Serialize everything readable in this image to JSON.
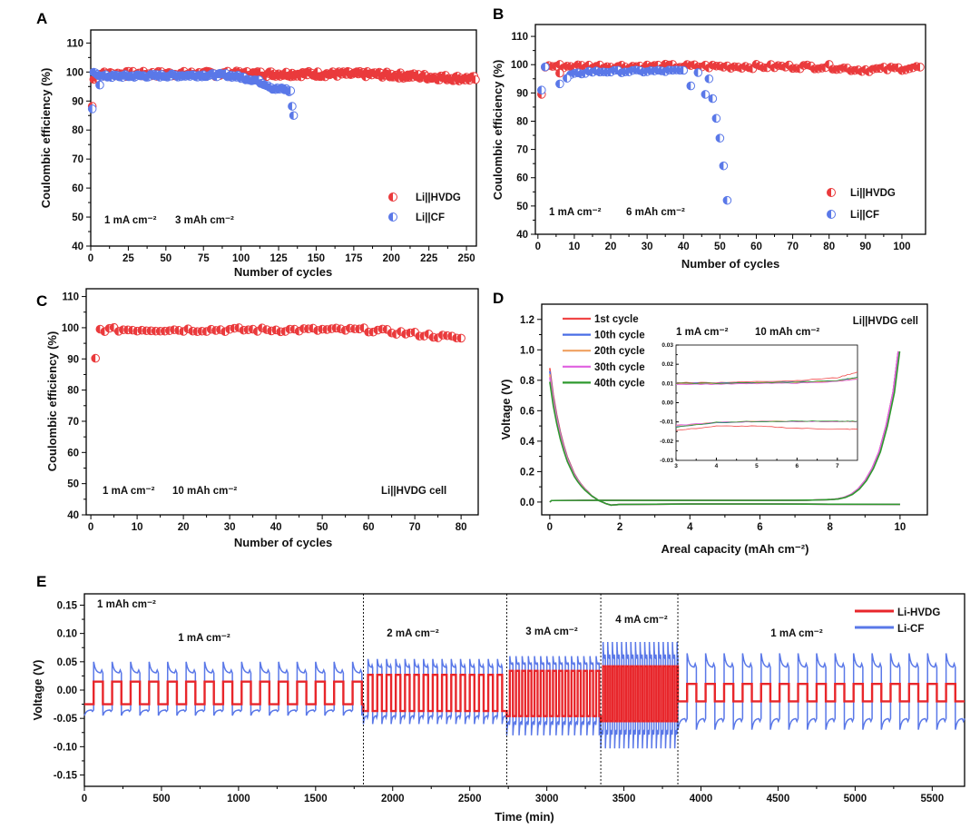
{
  "panel_labels": [
    "A",
    "B",
    "C",
    "D",
    "E"
  ],
  "chart_data": [
    {
      "panel": "A",
      "type": "scatter",
      "xlabel": "Number of cycles",
      "ylabel": "Coulombic efficiency (%)",
      "xlim": [
        0,
        256.6
      ],
      "ylim": [
        40,
        114.5
      ],
      "xticks": [
        "0",
        "25",
        "50",
        "75",
        "100",
        "125",
        "150",
        "175",
        "200",
        "225",
        "250"
      ],
      "yticks": [
        "40",
        "50",
        "60",
        "70",
        "80",
        "90",
        "100",
        "110"
      ],
      "annotations": [
        "1 mA cm⁻²",
        "3 mAh cm⁻²"
      ],
      "legend_position": "bottom-right",
      "series": [
        {
          "name": "Li||HVDG",
          "color": "#ea3a3c",
          "range": [
            2,
            256
          ],
          "jitter": 1.0,
          "trend": [
            [
              2,
              97.5
            ],
            [
              5,
              99.3
            ],
            [
              120,
              99.4
            ],
            [
              190,
              99.2
            ],
            [
              215,
              98.6
            ],
            [
              256,
              97.6
            ]
          ],
          "points": [
            [
              1,
              88.2
            ]
          ]
        },
        {
          "name": "Li||CF",
          "color": "#5a78e8",
          "range": [
            2,
            133
          ],
          "jitter": 0.6,
          "trend": [
            [
              2,
              99.4
            ],
            [
              5,
              99.3
            ],
            [
              8,
              98.5
            ],
            [
              90,
              99.0
            ],
            [
              100,
              98.2
            ],
            [
              110,
              97.2
            ],
            [
              118,
              95.5
            ],
            [
              122,
              94.2
            ],
            [
              130,
              94.0
            ],
            [
              133,
              93.2
            ]
          ],
          "points": [
            [
              1,
              87.3
            ],
            [
              6,
              95.5
            ],
            [
              134,
              88.2
            ],
            [
              135,
              85.0
            ]
          ]
        }
      ]
    },
    {
      "panel": "B",
      "type": "scatter",
      "xlabel": "Number of cycles",
      "ylabel": "Coulombic efficiency (%)",
      "xlim": [
        -0.7,
        106.5
      ],
      "ylim": [
        40,
        114.2
      ],
      "xticks": [
        "0",
        "10",
        "20",
        "30",
        "40",
        "50",
        "60",
        "70",
        "80",
        "90",
        "100"
      ],
      "yticks": [
        "40",
        "50",
        "60",
        "70",
        "80",
        "90",
        "100",
        "110"
      ],
      "annotations": [
        "1 mA cm⁻²",
        "6 mAh cm⁻²"
      ],
      "legend_position": "bottom-right",
      "series": [
        {
          "name": "Li||HVDG",
          "color": "#ea3a3c",
          "range": [
            2,
            105
          ],
          "jitter": 0.8,
          "trend": [
            [
              2,
              99.5
            ],
            [
              80,
              99.3
            ],
            [
              88,
              98.2
            ],
            [
              93,
              98.3
            ],
            [
              105,
              99.0
            ]
          ],
          "points": [
            [
              1,
              89.5
            ],
            [
              6,
              97.0
            ]
          ]
        },
        {
          "name": "Li||CF",
          "color": "#5a78e8",
          "range": [
            9,
            40
          ],
          "jitter": 0.5,
          "trend": [
            [
              9,
              96.2
            ],
            [
              14,
              97.5
            ],
            [
              40,
              97.8
            ]
          ],
          "points": [
            [
              1,
              91.0
            ],
            [
              2,
              99.2
            ],
            [
              6,
              93.2
            ],
            [
              8,
              95.2
            ],
            [
              42,
              92.5
            ],
            [
              44,
              97.2
            ],
            [
              46,
              89.5
            ],
            [
              47,
              95.0
            ],
            [
              48,
              88.0
            ],
            [
              49,
              81.0
            ],
            [
              50,
              74.0
            ],
            [
              51,
              64.2
            ],
            [
              52,
              52.0
            ]
          ]
        }
      ]
    },
    {
      "panel": "C",
      "type": "scatter",
      "xlabel": "Number of cycles",
      "ylabel": "Coulombic efficiency (%)",
      "xlim": [
        -1,
        83.7
      ],
      "ylim": [
        40,
        112.5
      ],
      "xticks": [
        "0",
        "10",
        "20",
        "30",
        "40",
        "50",
        "60",
        "70",
        "80"
      ],
      "yticks": [
        "40",
        "50",
        "60",
        "70",
        "80",
        "90",
        "100",
        "110"
      ],
      "annotations": [
        "1 mA cm⁻²",
        "10 mAh cm⁻²",
        "Li||HVDG cell"
      ],
      "series": [
        {
          "name": "Li||HVDG",
          "color": "#ea3a3c",
          "range": [
            2,
            80
          ],
          "jitter": 0.7,
          "trend": [
            [
              2,
              99.4
            ],
            [
              60,
              99.3
            ],
            [
              70,
              98.0
            ],
            [
              80,
              96.6
            ]
          ],
          "points": [
            [
              1,
              90.2
            ]
          ]
        }
      ]
    },
    {
      "panel": "D",
      "type": "line",
      "xlabel": "Areal capacity (mAh cm⁻²)",
      "ylabel": "Voltage (V)",
      "xlim": [
        -0.23,
        10.78
      ],
      "ylim": [
        -0.084,
        1.3
      ],
      "xticks": [
        "0",
        "2",
        "4",
        "6",
        "8",
        "10"
      ],
      "yticks": [
        "0.0",
        "0.2",
        "0.4",
        "0.6",
        "0.8",
        "1.0",
        "1.2"
      ],
      "annotations": [
        "1 mA cm⁻²",
        "10 mAh cm⁻²",
        "Li||HVDG cell"
      ],
      "legend_position": "top-left",
      "discharge_x": [
        0,
        0.05,
        0.1,
        0.2,
        0.3,
        0.4,
        0.5,
        0.6,
        0.7,
        0.8,
        0.9,
        1.0,
        1.1,
        1.2,
        1.3,
        1.4,
        1.5,
        1.6,
        1.75,
        2,
        3,
        4,
        6,
        8,
        10
      ],
      "discharge_v": [
        0.8,
        0.72,
        0.64,
        0.52,
        0.42,
        0.34,
        0.27,
        0.22,
        0.17,
        0.135,
        0.105,
        0.08,
        0.06,
        0.04,
        0.025,
        0.01,
        0.0,
        -0.01,
        -0.02,
        -0.016,
        -0.014,
        -0.013,
        -0.013,
        -0.014,
        -0.015
      ],
      "charge_x": [
        0,
        0.05,
        1,
        2,
        4,
        6,
        7,
        7.5,
        8,
        8.2,
        8.4,
        8.6,
        8.8,
        9.0,
        9.2,
        9.4,
        9.6,
        9.8,
        9.95
      ],
      "charge_v": [
        0.0,
        0.01,
        0.011,
        0.011,
        0.011,
        0.011,
        0.012,
        0.013,
        0.016,
        0.02,
        0.03,
        0.05,
        0.085,
        0.14,
        0.22,
        0.33,
        0.5,
        0.72,
        0.99
      ],
      "series": [
        {
          "name": "1st cycle",
          "color": "#f04646",
          "initial_voltage": 0.88
        },
        {
          "name": "10th cycle",
          "color": "#4a6ee6",
          "initial_voltage": 0.86
        },
        {
          "name": "20th cycle",
          "color": "#f0a060",
          "initial_voltage": 0.84
        },
        {
          "name": "30th cycle",
          "color": "#e060e0",
          "initial_voltage": 0.82
        },
        {
          "name": "40th cycle",
          "color": "#2e9a2e",
          "initial_voltage": 0.79
        }
      ],
      "inset": {
        "xlim": [
          3,
          7.5
        ],
        "ylim": [
          -0.03,
          0.03
        ],
        "xticks": [
          "3",
          "4",
          "5",
          "6",
          "7"
        ],
        "yticks": [
          "-0.03",
          "-0.02",
          "-0.01",
          "0.00",
          "0.01",
          "0.02",
          "0.03"
        ],
        "x": [
          3,
          4,
          5,
          6,
          7,
          7.5
        ],
        "series": [
          {
            "name": "1st cycle",
            "charge": [
              0.0105,
              0.0105,
              0.011,
              0.0115,
              0.013,
              0.016
            ],
            "discharge": [
              -0.0145,
              -0.0122,
              -0.0122,
              -0.0133,
              -0.0138,
              -0.0138
            ]
          },
          {
            "name": "10th cycle",
            "charge": [
              0.0102,
              0.0102,
              0.0105,
              0.0108,
              0.0115,
              0.0132
            ],
            "discharge": [
              -0.0125,
              -0.0105,
              -0.0098,
              -0.0098,
              -0.0098,
              -0.0098
            ]
          },
          {
            "name": "20th cycle",
            "charge": [
              0.0098,
              0.0098,
              0.0102,
              0.0105,
              0.0112,
              0.0125
            ],
            "discharge": [
              -0.012,
              -0.0102,
              -0.0097,
              -0.0097,
              -0.0098,
              -0.0098
            ]
          },
          {
            "name": "30th cycle",
            "charge": [
              0.0096,
              0.0096,
              0.0099,
              0.0102,
              0.011,
              0.0122
            ],
            "discharge": [
              -0.0118,
              -0.0102,
              -0.0098,
              -0.0098,
              -0.0098,
              -0.0099
            ]
          },
          {
            "name": "40th cycle",
            "charge": [
              0.0101,
              0.0101,
              0.0104,
              0.0107,
              0.0115,
              0.0133
            ],
            "discharge": [
              -0.0128,
              -0.0102,
              -0.0097,
              -0.0096,
              -0.0097,
              -0.0097
            ]
          }
        ]
      }
    },
    {
      "panel": "E",
      "type": "line",
      "xlabel": "Time (min)",
      "ylabel": "Voltage (V)",
      "xlim": [
        0,
        5710
      ],
      "ylim": [
        -0.17,
        0.17
      ],
      "xticks": [
        "0",
        "500",
        "1000",
        "1500",
        "2000",
        "2500",
        "3000",
        "3500",
        "4000",
        "4500",
        "5000",
        "5500"
      ],
      "yticks": [
        "-0.15",
        "-0.10",
        "-0.05",
        "0.00",
        "0.05",
        "0.10",
        "0.15"
      ],
      "capacity_label": "1 mAh cm⁻²",
      "legend_position": "top-right",
      "legend": [
        {
          "name": "Li-HVDG",
          "color": "#e8262b"
        },
        {
          "name": "Li-CF",
          "color": "#5a78e8"
        }
      ],
      "boundaries": [
        1810,
        2740,
        3350,
        3850
      ],
      "segments": [
        {
          "label": "1 mA cm⁻²",
          "start": 0,
          "end": 1810,
          "period": 120,
          "hvdg": [
            0.015,
            -0.025
          ],
          "cf_peak": [
            0.05,
            -0.045
          ],
          "cf_plateau": [
            0.03,
            -0.035
          ]
        },
        {
          "label": "2 mA cm⁻²",
          "start": 1810,
          "end": 2740,
          "period": 60,
          "hvdg": [
            0.027,
            -0.037
          ],
          "cf_peak": [
            0.055,
            -0.06
          ],
          "cf_plateau": [
            0.04,
            -0.045
          ]
        },
        {
          "label": "3 mA cm⁻²",
          "start": 2740,
          "end": 3350,
          "period": 40,
          "hvdg": [
            0.034,
            -0.046
          ],
          "cf_peak": [
            0.06,
            -0.08
          ],
          "cf_plateau": [
            0.045,
            -0.055
          ]
        },
        {
          "label": "4 mA cm⁻²",
          "start": 3350,
          "end": 3850,
          "period": 30,
          "hvdg": [
            0.042,
            -0.055
          ],
          "cf_peak": [
            0.085,
            -0.103
          ],
          "cf_plateau": [
            0.055,
            -0.07
          ]
        },
        {
          "label": "1 mA cm⁻²",
          "start": 3850,
          "end": 5710,
          "period": 120,
          "hvdg": [
            0.011,
            -0.02
          ],
          "cf_peak": [
            0.065,
            -0.07
          ],
          "cf_plateau": [
            0.04,
            -0.05
          ]
        }
      ]
    }
  ]
}
